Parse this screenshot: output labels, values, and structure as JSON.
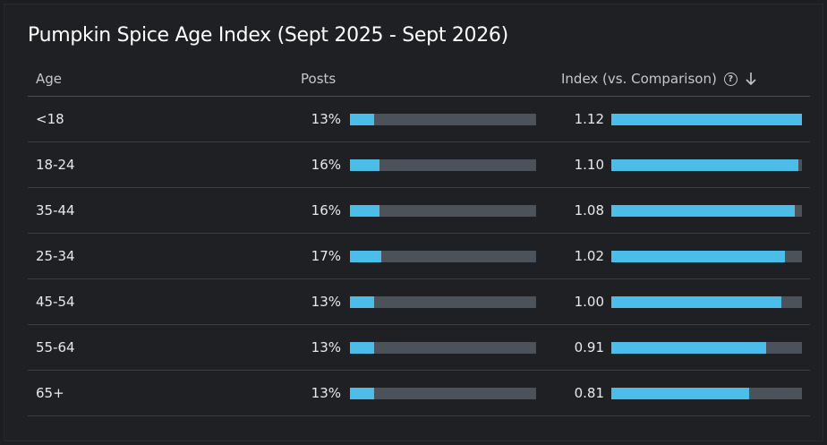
{
  "title": "Pumpkin Spice Age Index (Sept 2025 - Sept 2026)",
  "columns": {
    "age": "Age",
    "posts": "Posts",
    "index": "Index (vs. Comparison)",
    "help_icon": "question-circle-icon",
    "sort_icon": "arrow-down-icon",
    "help_glyph": "?"
  },
  "colors": {
    "bar_fill": "#4cbde9",
    "bar_track": "#4b5259"
  },
  "index_max": 1.12,
  "rows": [
    {
      "age": "<18",
      "posts": "13%",
      "posts_pct": 13,
      "index": "1.12",
      "index_value": 1.12
    },
    {
      "age": "18-24",
      "posts": "16%",
      "posts_pct": 16,
      "index": "1.10",
      "index_value": 1.1
    },
    {
      "age": "35-44",
      "posts": "16%",
      "posts_pct": 16,
      "index": "1.08",
      "index_value": 1.08
    },
    {
      "age": "25-34",
      "posts": "17%",
      "posts_pct": 17,
      "index": "1.02",
      "index_value": 1.02
    },
    {
      "age": "45-54",
      "posts": "13%",
      "posts_pct": 13,
      "index": "1.00",
      "index_value": 1.0
    },
    {
      "age": "55-64",
      "posts": "13%",
      "posts_pct": 13,
      "index": "0.91",
      "index_value": 0.91
    },
    {
      "age": "65+",
      "posts": "13%",
      "posts_pct": 13,
      "index": "0.81",
      "index_value": 0.81
    }
  ]
}
